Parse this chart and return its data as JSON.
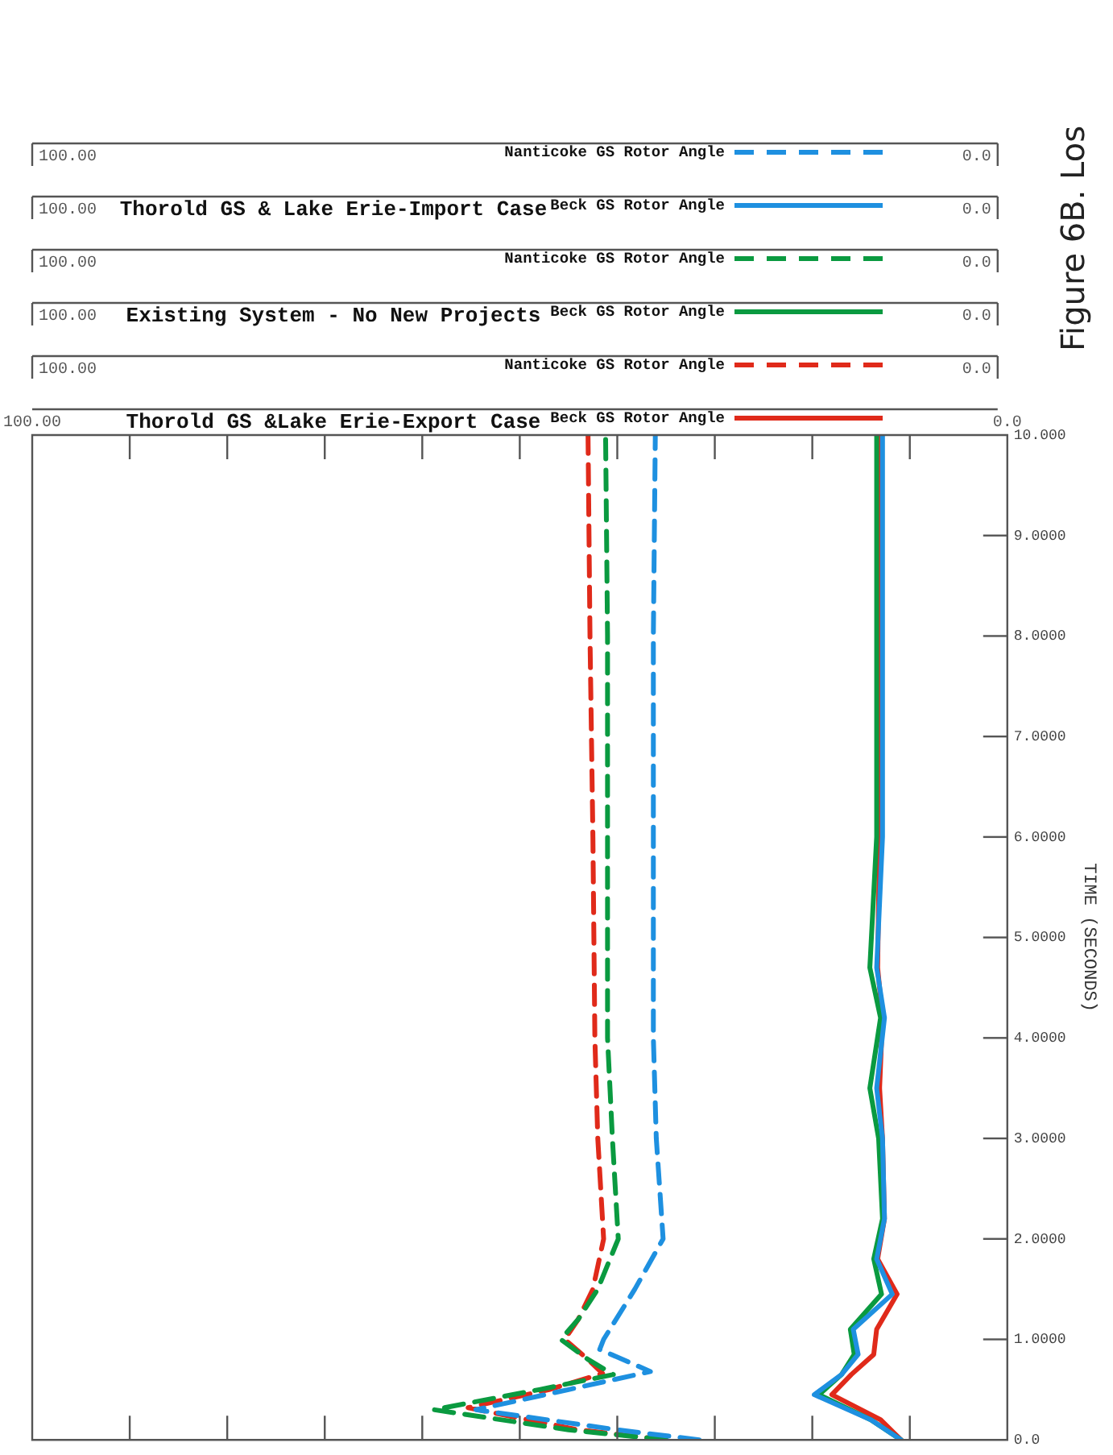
{
  "chart_data": {
    "type": "line",
    "title": "Figure 6B. Los",
    "ylabel": "TIME (SECONDS)",
    "annotations": [
      "Thorold GS & Lake Erie-Import Case",
      "Existing System - No New Projects",
      "Thorold GS &Lake Erie-Export Case"
    ],
    "ylim": [
      0,
      10
    ],
    "yticks": [
      {
        "value": 0,
        "label": "0.0"
      },
      {
        "value": 1,
        "label": "1.0000"
      },
      {
        "value": 2,
        "label": "2.0000"
      },
      {
        "value": 3,
        "label": "3.0000"
      },
      {
        "value": 4,
        "label": "4.0000"
      },
      {
        "value": 5,
        "label": "5.0000"
      },
      {
        "value": 6,
        "label": "6.0000"
      },
      {
        "value": 7,
        "label": "7.0000"
      },
      {
        "value": 8,
        "label": "8.0000"
      },
      {
        "value": 9,
        "label": "9.0000"
      },
      {
        "value": 10,
        "label": "10.000"
      }
    ],
    "xlim": [
      100,
      0
    ],
    "xticks": [
      {
        "value": 100,
        "label": "100.00"
      },
      {
        "value": 90,
        "label": null
      },
      {
        "value": 80,
        "label": null
      },
      {
        "value": 70,
        "label": null
      },
      {
        "value": 60,
        "label": null
      },
      {
        "value": 50,
        "label": null
      },
      {
        "value": 40,
        "label": null
      },
      {
        "value": 30,
        "label": null
      },
      {
        "value": 20,
        "label": null
      },
      {
        "value": 10,
        "label": null
      },
      {
        "value": 0,
        "label": "0.0"
      }
    ],
    "legend": "top",
    "grid": false,
    "series": [
      {
        "name": "Nanticoke GS Rotor Angle",
        "color": "#1e90e0",
        "line_style": "dashed",
        "x": [
          31.6,
          40,
          54.5,
          45,
          36.6,
          41.8,
          41.4,
          38.2,
          35.3,
          36.0,
          36.3,
          36.3,
          36.3,
          36.1
        ],
        "values": [
          0,
          0.1,
          0.3,
          0.5,
          0.68,
          0.9,
          1.0,
          1.5,
          2.0,
          3,
          4,
          6,
          8,
          10
        ]
      },
      {
        "name": "Beck GS Rotor Angle",
        "color": "#1e90e0",
        "line_style": "solid",
        "x": [
          10.9,
          14,
          19.8,
          17,
          15.3,
          15.8,
          11.8,
          13.4,
          12.6,
          12.8,
          13.4,
          12.6,
          13.4,
          12.8,
          12.8
        ],
        "values": [
          0,
          0.2,
          0.45,
          0.65,
          0.85,
          1.1,
          1.45,
          1.8,
          2.2,
          3,
          3.5,
          4.2,
          4.7,
          6,
          10
        ]
      },
      {
        "name": "Nanticoke GS Rotor Angle",
        "color": "#0a9a40",
        "line_style": "dashed",
        "x": [
          35,
          45,
          58.8,
          48,
          40.4,
          43,
          45.8,
          44,
          42,
          39.9,
          40.5,
          41,
          41,
          41,
          41.2
        ],
        "values": [
          0,
          0.1,
          0.3,
          0.5,
          0.65,
          0.8,
          1.0,
          1.2,
          1.5,
          2.0,
          3,
          4,
          6,
          8,
          10
        ]
      },
      {
        "name": "Beck GS Rotor Angle",
        "color": "#0a9a40",
        "line_style": "solid",
        "x": [
          10.9,
          14,
          19.3,
          17,
          15.7,
          16.1,
          12.9,
          13.7,
          12.8,
          13.2,
          14.1,
          13.0,
          14.1,
          13.4,
          13.4
        ],
        "values": [
          0,
          0.2,
          0.45,
          0.65,
          0.85,
          1.1,
          1.45,
          1.8,
          2.2,
          3,
          3.5,
          4.2,
          4.7,
          6,
          10
        ]
      },
      {
        "name": "Nanticoke GS Rotor Angle",
        "color": "#e02a1a",
        "line_style": "dashed",
        "x": [
          35,
          44,
          55.3,
          47,
          41.5,
          43,
          45.4,
          44,
          42.5,
          41.4,
          42,
          42.3,
          42.5,
          42.8,
          43.0
        ],
        "values": [
          0,
          0.1,
          0.32,
          0.5,
          0.66,
          0.8,
          1.0,
          1.2,
          1.5,
          2.0,
          3,
          4,
          6,
          8,
          10
        ]
      },
      {
        "name": "Beck GS Rotor Angle",
        "color": "#e02a1a",
        "line_style": "solid",
        "x": [
          10.9,
          13,
          18.0,
          16,
          13.7,
          13.4,
          11.3,
          13.3,
          12.6,
          12.8,
          13.1,
          12.8,
          13.3,
          13.1,
          13.1
        ],
        "values": [
          0,
          0.2,
          0.45,
          0.65,
          0.85,
          1.1,
          1.45,
          1.8,
          2.2,
          3,
          3.5,
          4.2,
          4.7,
          6,
          10
        ]
      }
    ]
  }
}
